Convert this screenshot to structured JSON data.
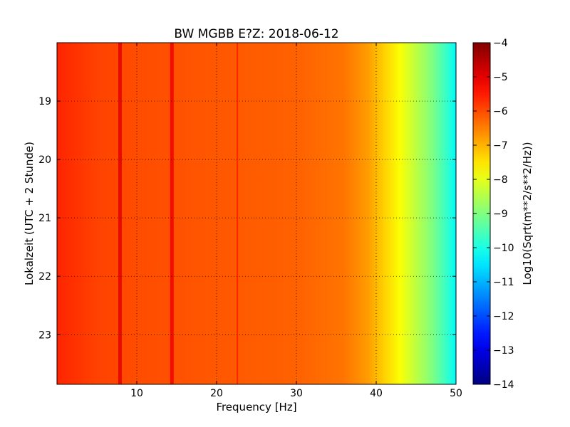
{
  "chart_data": {
    "type": "heatmap",
    "title": "BW MGBB E?Z: 2018-06-12",
    "xlabel": "Frequency [Hz]",
    "ylabel": "Lokalzeit (UTC + 2 Stunde)",
    "xlim": [
      0,
      50
    ],
    "ylim": [
      18.0,
      23.85
    ],
    "y_inverted": true,
    "x_ticks": [
      10,
      20,
      30,
      40,
      50
    ],
    "x_tick_labels": [
      "10",
      "20",
      "30",
      "40",
      "50"
    ],
    "y_ticks": [
      19,
      20,
      21,
      22,
      23
    ],
    "y_tick_labels": [
      "19",
      "20",
      "21",
      "22",
      "23"
    ],
    "grid": true,
    "colormap": "jet",
    "colorbar": {
      "label": "Log10(Sqrt(m**2/s**2/Hz))",
      "range": [
        -14,
        -4
      ],
      "ticks": [
        -4,
        -5,
        -6,
        -7,
        -8,
        -9,
        -10,
        -11,
        -12,
        -13,
        -14
      ],
      "tick_labels": [
        "−4",
        "−5",
        "−6",
        "−7",
        "−8",
        "−9",
        "−10",
        "−11",
        "−12",
        "−13",
        "−14"
      ]
    },
    "spectrum_profile": [
      {
        "freq": 0,
        "value": -5.6
      },
      {
        "freq": 5,
        "value": -5.9
      },
      {
        "freq": 10,
        "value": -6.0
      },
      {
        "freq": 20,
        "value": -6.1
      },
      {
        "freq": 30,
        "value": -6.2
      },
      {
        "freq": 36,
        "value": -6.4
      },
      {
        "freq": 39,
        "value": -6.8
      },
      {
        "freq": 41,
        "value": -7.3
      },
      {
        "freq": 43,
        "value": -7.8
      },
      {
        "freq": 45,
        "value": -8.4
      },
      {
        "freq": 47,
        "value": -9.0
      },
      {
        "freq": 49,
        "value": -9.8
      },
      {
        "freq": 50,
        "value": -10.3
      }
    ],
    "spectral_lines": [
      {
        "freq": 7.9,
        "delta": 1.0
      },
      {
        "freq": 14.4,
        "delta": 0.9
      },
      {
        "freq": 22.6,
        "delta": 0.6
      }
    ],
    "colors": {
      "background": "#ffffff",
      "axes": "#000000"
    }
  }
}
